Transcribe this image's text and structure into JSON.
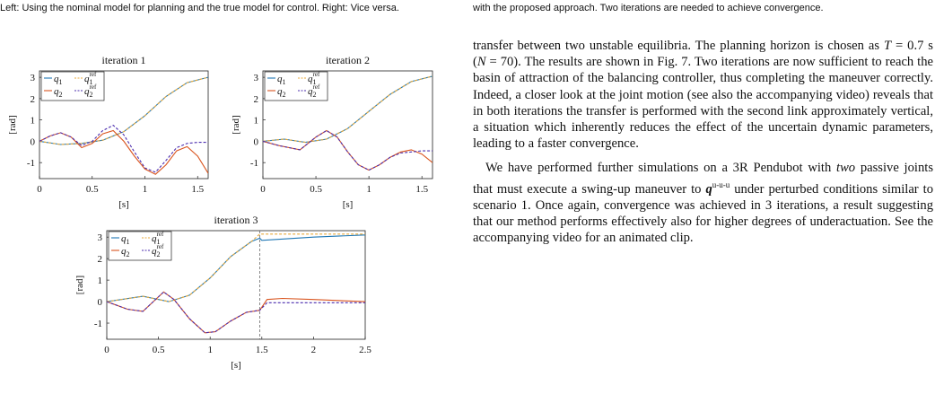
{
  "captions": {
    "left": "Left: Using the nominal model for planning and the true model for control. Right: Vice versa.",
    "right": "with the proposed approach. Two iterations are needed to achieve convergence."
  },
  "body": {
    "p1": {
      "a": "transfer between two unstable equilibria. The planning horizon is chosen as ",
      "T": "T",
      "b": " = 0.7 s (",
      "N": "N",
      "c": " = 70). The results are shown in Fig. 7. Two iterations are now sufficient to reach the basin of attraction of the balancing controller, thus completing the maneuver correctly. Indeed, a closer look at the joint motion (see also the accompanying video) reveals that in both iterations the transfer is performed with the second link approximately vertical, a situation which inherently reduces the effect of the uncertain dynamic parameters, leading to a faster convergence."
    },
    "p2": {
      "a": "We have performed further simulations on a 3R Pendubot with ",
      "two": "two",
      "b": " passive joints that must execute a swing-up maneuver to ",
      "q": "q",
      "sup": "u-u-u",
      "c": " under perturbed conditions similar to scenario 1. Once again, convergence was achieved in 3 iterations, a result suggesting that our method performs effectively also for higher degrees of underactuation. See the accompanying video for an animated clip."
    }
  },
  "chart_data": [
    {
      "type": "line",
      "title": "iteration 1",
      "xlabel": "[s]",
      "ylabel": "[rad]",
      "xlim": [
        0,
        1.6
      ],
      "ylim": [
        -1.75,
        3.3
      ],
      "xticks": [
        "0",
        "0.5",
        "1",
        "1.5"
      ],
      "yticks": [
        "-1",
        "0",
        "1",
        "2",
        "3"
      ],
      "legend": [
        "q1",
        "q1 ref",
        "q2",
        "q2 ref"
      ],
      "legend_position": "top-left",
      "series": [
        {
          "name": "q1",
          "color": "#1f77b4",
          "dash": "",
          "points": [
            [
              0,
              0
            ],
            [
              0.2,
              -0.15
            ],
            [
              0.4,
              -0.1
            ],
            [
              0.6,
              0.05
            ],
            [
              0.8,
              0.45
            ],
            [
              1.0,
              1.2
            ],
            [
              1.2,
              2.1
            ],
            [
              1.4,
              2.75
            ],
            [
              1.6,
              3.0
            ]
          ]
        },
        {
          "name": "q1 ref",
          "color": "#e8a93a",
          "dash": "3,2",
          "points": [
            [
              0,
              0
            ],
            [
              0.2,
              -0.15
            ],
            [
              0.4,
              -0.1
            ],
            [
              0.6,
              0.05
            ],
            [
              0.8,
              0.45
            ],
            [
              1.0,
              1.2
            ],
            [
              1.2,
              2.1
            ],
            [
              1.4,
              2.75
            ],
            [
              1.6,
              3.0
            ]
          ]
        },
        {
          "name": "q2",
          "color": "#d9541e",
          "dash": "",
          "points": [
            [
              0,
              0
            ],
            [
              0.1,
              0.25
            ],
            [
              0.2,
              0.4
            ],
            [
              0.3,
              0.2
            ],
            [
              0.4,
              -0.3
            ],
            [
              0.5,
              -0.1
            ],
            [
              0.6,
              0.35
            ],
            [
              0.7,
              0.5
            ],
            [
              0.8,
              0.0
            ],
            [
              0.9,
              -0.7
            ],
            [
              1.0,
              -1.3
            ],
            [
              1.1,
              -1.55
            ],
            [
              1.2,
              -1.1
            ],
            [
              1.3,
              -0.45
            ],
            [
              1.4,
              -0.25
            ],
            [
              1.5,
              -0.7
            ],
            [
              1.6,
              -1.5
            ]
          ]
        },
        {
          "name": "q2 ref",
          "color": "#4b2dae",
          "dash": "3,2",
          "points": [
            [
              0,
              0
            ],
            [
              0.1,
              0.25
            ],
            [
              0.2,
              0.4
            ],
            [
              0.3,
              0.2
            ],
            [
              0.4,
              -0.2
            ],
            [
              0.5,
              0.0
            ],
            [
              0.6,
              0.5
            ],
            [
              0.7,
              0.75
            ],
            [
              0.8,
              0.3
            ],
            [
              0.9,
              -0.5
            ],
            [
              1.0,
              -1.25
            ],
            [
              1.1,
              -1.45
            ],
            [
              1.2,
              -0.9
            ],
            [
              1.3,
              -0.3
            ],
            [
              1.4,
              -0.1
            ],
            [
              1.5,
              -0.05
            ],
            [
              1.6,
              -0.05
            ]
          ]
        }
      ]
    },
    {
      "type": "line",
      "title": "iteration 2",
      "xlabel": "[s]",
      "ylabel": "[rad]",
      "xlim": [
        0,
        1.6
      ],
      "ylim": [
        -1.75,
        3.3
      ],
      "xticks": [
        "0",
        "0.5",
        "1",
        "1.5"
      ],
      "yticks": [
        "-1",
        "0",
        "1",
        "2",
        "3"
      ],
      "legend": [
        "q1",
        "q1 ref",
        "q2",
        "q2 ref"
      ],
      "legend_position": "top-left",
      "series": [
        {
          "name": "q1",
          "color": "#1f77b4",
          "dash": "",
          "points": [
            [
              0,
              0
            ],
            [
              0.2,
              0.1
            ],
            [
              0.4,
              -0.05
            ],
            [
              0.6,
              0.1
            ],
            [
              0.8,
              0.6
            ],
            [
              1.0,
              1.4
            ],
            [
              1.2,
              2.2
            ],
            [
              1.4,
              2.8
            ],
            [
              1.6,
              3.05
            ]
          ]
        },
        {
          "name": "q1 ref",
          "color": "#e8a93a",
          "dash": "3,2",
          "points": [
            [
              0,
              0
            ],
            [
              0.2,
              0.1
            ],
            [
              0.4,
              -0.05
            ],
            [
              0.6,
              0.1
            ],
            [
              0.8,
              0.6
            ],
            [
              1.0,
              1.4
            ],
            [
              1.2,
              2.2
            ],
            [
              1.4,
              2.8
            ],
            [
              1.6,
              3.05
            ]
          ]
        },
        {
          "name": "q2",
          "color": "#d9541e",
          "dash": "",
          "points": [
            [
              0,
              0
            ],
            [
              0.15,
              -0.2
            ],
            [
              0.35,
              -0.4
            ],
            [
              0.5,
              0.2
            ],
            [
              0.6,
              0.5
            ],
            [
              0.7,
              0.2
            ],
            [
              0.8,
              -0.5
            ],
            [
              0.9,
              -1.1
            ],
            [
              1.0,
              -1.35
            ],
            [
              1.1,
              -1.1
            ],
            [
              1.2,
              -0.75
            ],
            [
              1.3,
              -0.5
            ],
            [
              1.4,
              -0.4
            ],
            [
              1.5,
              -0.6
            ],
            [
              1.6,
              -1.0
            ]
          ]
        },
        {
          "name": "q2 ref",
          "color": "#4b2dae",
          "dash": "3,2",
          "points": [
            [
              0,
              0
            ],
            [
              0.15,
              -0.2
            ],
            [
              0.35,
              -0.4
            ],
            [
              0.5,
              0.2
            ],
            [
              0.6,
              0.5
            ],
            [
              0.7,
              0.2
            ],
            [
              0.8,
              -0.5
            ],
            [
              0.9,
              -1.1
            ],
            [
              1.0,
              -1.35
            ],
            [
              1.1,
              -1.1
            ],
            [
              1.2,
              -0.75
            ],
            [
              1.3,
              -0.55
            ],
            [
              1.4,
              -0.5
            ],
            [
              1.5,
              -0.45
            ],
            [
              1.6,
              -0.45
            ]
          ]
        }
      ]
    },
    {
      "type": "line",
      "title": "iteration 3",
      "xlabel": "[s]",
      "ylabel": "[rad]",
      "xlim": [
        0,
        2.5
      ],
      "ylim": [
        -1.75,
        3.3
      ],
      "xticks": [
        "0",
        "0.5",
        "1",
        "1.5",
        "2",
        "2.5"
      ],
      "yticks": [
        "-1",
        "0",
        "1",
        "2",
        "3"
      ],
      "legend": [
        "q1",
        "q1 ref",
        "q2",
        "q2 ref"
      ],
      "legend_position": "top-left",
      "vline": 1.48,
      "series": [
        {
          "name": "q1",
          "color": "#1f77b4",
          "dash": "",
          "points": [
            [
              0,
              0
            ],
            [
              0.35,
              0.25
            ],
            [
              0.6,
              0.0
            ],
            [
              0.8,
              0.3
            ],
            [
              1.0,
              1.1
            ],
            [
              1.2,
              2.1
            ],
            [
              1.4,
              2.8
            ],
            [
              1.48,
              2.95
            ],
            [
              1.5,
              2.85
            ],
            [
              2.0,
              3.0
            ],
            [
              2.5,
              3.1
            ]
          ]
        },
        {
          "name": "q1 ref",
          "color": "#e8a93a",
          "dash": "3,2",
          "points": [
            [
              0,
              0
            ],
            [
              0.35,
              0.25
            ],
            [
              0.6,
              0.0
            ],
            [
              0.8,
              0.3
            ],
            [
              1.0,
              1.1
            ],
            [
              1.2,
              2.1
            ],
            [
              1.4,
              2.8
            ],
            [
              1.48,
              3.14
            ],
            [
              2.5,
              3.14
            ]
          ]
        },
        {
          "name": "q2",
          "color": "#d9541e",
          "dash": "",
          "points": [
            [
              0,
              0
            ],
            [
              0.2,
              -0.35
            ],
            [
              0.35,
              -0.45
            ],
            [
              0.45,
              0.0
            ],
            [
              0.55,
              0.45
            ],
            [
              0.65,
              0.1
            ],
            [
              0.8,
              -0.8
            ],
            [
              0.95,
              -1.45
            ],
            [
              1.05,
              -1.4
            ],
            [
              1.2,
              -0.9
            ],
            [
              1.35,
              -0.5
            ],
            [
              1.48,
              -0.4
            ],
            [
              1.55,
              0.1
            ],
            [
              1.7,
              0.15
            ],
            [
              2.0,
              0.1
            ],
            [
              2.5,
              0.0
            ]
          ]
        },
        {
          "name": "q2 ref",
          "color": "#4b2dae",
          "dash": "3,2",
          "points": [
            [
              0,
              0
            ],
            [
              0.2,
              -0.35
            ],
            [
              0.35,
              -0.45
            ],
            [
              0.45,
              0.0
            ],
            [
              0.55,
              0.45
            ],
            [
              0.65,
              0.1
            ],
            [
              0.8,
              -0.8
            ],
            [
              0.95,
              -1.45
            ],
            [
              1.05,
              -1.4
            ],
            [
              1.2,
              -0.9
            ],
            [
              1.35,
              -0.5
            ],
            [
              1.48,
              -0.4
            ],
            [
              1.55,
              -0.05
            ],
            [
              2.5,
              -0.05
            ]
          ]
        }
      ]
    }
  ]
}
